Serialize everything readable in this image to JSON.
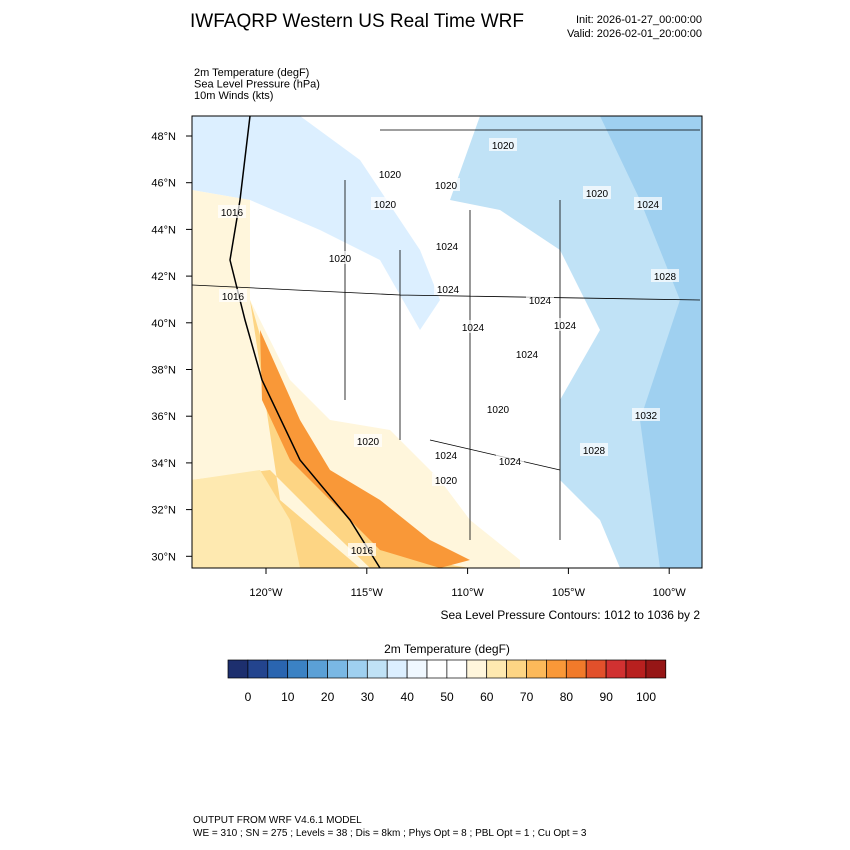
{
  "header": {
    "title": "IWFAQRP Western US Real Time WRF",
    "init": "Init: 2026-01-27_00:00:00",
    "valid": "Valid: 2026-02-01_20:00:00"
  },
  "fields": [
    "2m Temperature   (degF)",
    "Sea Level Pressure   (hPa)",
    "10m Winds   (kts)"
  ],
  "map": {
    "lat_labels": [
      "48°N",
      "46°N",
      "44°N",
      "42°N",
      "40°N",
      "38°N",
      "36°N",
      "34°N",
      "32°N",
      "30°N"
    ],
    "lon_labels": [
      "120°W",
      "115°W",
      "110°W",
      "105°W",
      "100°W"
    ],
    "contour_labels": [
      "1016",
      "1020",
      "1020",
      "1020",
      "1020",
      "1020",
      "1024",
      "1024",
      "1024",
      "1024",
      "1024",
      "1024",
      "1020",
      "1024",
      "1028",
      "1016",
      "1020",
      "1032",
      "1028",
      "1024",
      "1024",
      "1020",
      "1020",
      "1016"
    ],
    "contour_note": "Sea Level Pressure Contours: 1012 to 1036 by 2"
  },
  "colorbar": {
    "title": "2m Temperature  (degF)",
    "ticks": [
      0,
      10,
      20,
      30,
      40,
      50,
      60,
      70,
      80,
      90,
      100
    ],
    "colors": [
      "#1d2f6e",
      "#23448e",
      "#2a65b0",
      "#3b82c4",
      "#5ba0d6",
      "#7ab8e4",
      "#9fd0f0",
      "#c0e2f6",
      "#dcefff",
      "#f0f8ff",
      "#ffffff",
      "#ffffff",
      "#fff6dc",
      "#fee9b0",
      "#fdd584",
      "#fcb95a",
      "#f99838",
      "#f17a2a",
      "#e2502b",
      "#d13131",
      "#b8201f",
      "#961616"
    ]
  },
  "footer": {
    "line1": "OUTPUT FROM WRF V4.6.1 MODEL",
    "line2": "WE = 310 ; SN = 275 ; Levels = 38 ; Dis = 8km ; Phys Opt = 8 ; PBL Opt = 1 ; Cu Opt = 3"
  }
}
